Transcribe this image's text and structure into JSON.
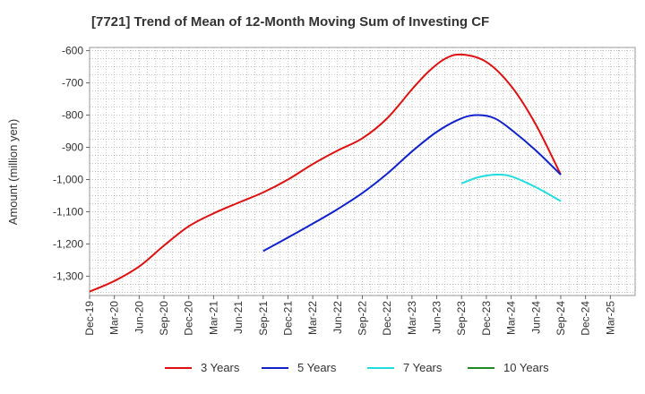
{
  "chart_data": {
    "type": "line",
    "title": "[7721]  Trend of Mean of 12-Month Moving Sum of Investing CF",
    "xlabel": "",
    "ylabel": "Amount (million yen)",
    "ylim": [
      -1360,
      -590
    ],
    "yticks": [
      -600,
      -700,
      -800,
      -900,
      -1000,
      -1100,
      -1200,
      -1300
    ],
    "ytick_labels": [
      "-600",
      "-700",
      "-800",
      "-900",
      "-1,000",
      "-1,100",
      "-1,200",
      "-1,300"
    ],
    "xlim": [
      0,
      66
    ],
    "xtick_labels": [
      "Dec-19",
      "Mar-20",
      "Jun-20",
      "Sep-20",
      "Dec-20",
      "Mar-21",
      "Jun-21",
      "Sep-21",
      "Dec-21",
      "Mar-22",
      "Jun-22",
      "Sep-22",
      "Dec-22",
      "Mar-23",
      "Jun-23",
      "Sep-23",
      "Dec-23",
      "Mar-24",
      "Jun-24",
      "Sep-24",
      "Dec-24",
      "Mar-25"
    ],
    "grid": true,
    "legend_position": "bottom",
    "series": [
      {
        "name": "3 Years",
        "color": "#dd1111",
        "x": [
          0,
          3,
          6,
          9,
          12,
          15,
          18,
          21,
          24,
          27,
          30,
          33,
          36,
          39,
          41,
          43,
          45,
          48,
          51,
          54,
          57
        ],
        "y": [
          -1348,
          -1315,
          -1270,
          -1205,
          -1145,
          -1105,
          -1072,
          -1040,
          -1000,
          -952,
          -910,
          -872,
          -810,
          -720,
          -665,
          -625,
          -612,
          -635,
          -710,
          -830,
          -985
        ]
      },
      {
        "name": "5 Years",
        "color": "#1122cc",
        "x": [
          21,
          24,
          27,
          30,
          33,
          36,
          39,
          42,
          45,
          47,
          49,
          51,
          54,
          57
        ],
        "y": [
          -1222,
          -1180,
          -1137,
          -1092,
          -1042,
          -982,
          -913,
          -852,
          -810,
          -800,
          -810,
          -845,
          -910,
          -985
        ]
      },
      {
        "name": "7 Years",
        "color": "#22dddd",
        "x": [
          45,
          47,
          49,
          51,
          54,
          57
        ],
        "y": [
          -1012,
          -993,
          -985,
          -990,
          -1024,
          -1067
        ]
      },
      {
        "name": "10 Years",
        "color": "#228822",
        "x": [],
        "y": []
      }
    ]
  }
}
